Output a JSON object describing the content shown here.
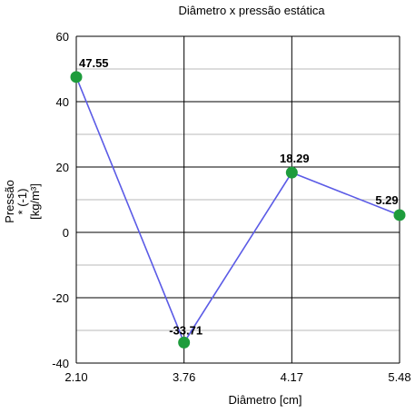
{
  "chart_data": {
    "type": "line",
    "title": "Diâmetro x pressão estática",
    "xlabel": "Diâmetro [cm]",
    "ylabel_lines": [
      "Pressão",
      "* (-1)",
      "[kg/m³]"
    ],
    "categories": [
      "2.10",
      "3.76",
      "4.17",
      "5.48"
    ],
    "series": [
      {
        "values": [
          47.55,
          -33.71,
          18.29,
          5.29
        ]
      }
    ],
    "data_labels": [
      "47.55",
      "-33.71",
      "18.29",
      "5.29"
    ],
    "ylim": [
      -40,
      60
    ],
    "yticks": [
      "60",
      "40",
      "20",
      "0",
      "-20",
      "-40"
    ],
    "grid": true,
    "line_color": "#5b5be6",
    "marker_color": "#1e9c3c"
  }
}
